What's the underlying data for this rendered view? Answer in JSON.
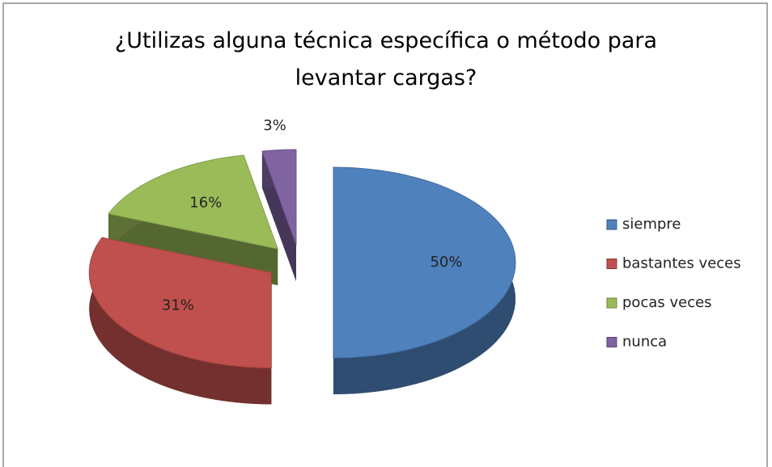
{
  "chart_data": {
    "type": "pie",
    "title": "¿Utilizas alguna técnica específica o método para levantar cargas?",
    "categories": [
      "siempre",
      "bastantes veces",
      "pocas veces",
      "nunca"
    ],
    "values": [
      50,
      31,
      16,
      3
    ],
    "value_labels": [
      "50%",
      "31%",
      "16%",
      "3%"
    ],
    "colors": [
      "#4f81bd",
      "#c0504d",
      "#9bbb59",
      "#8064a2"
    ],
    "legend": "right"
  }
}
